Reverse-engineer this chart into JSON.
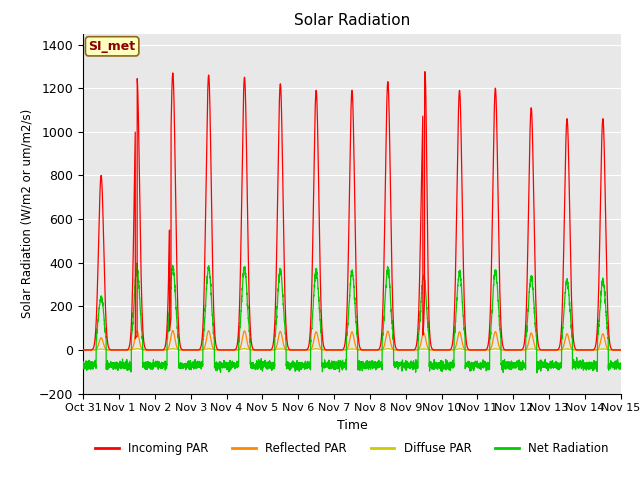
{
  "title": "Solar Radiation",
  "ylabel": "Solar Radiation (W/m2 or um/m2/s)",
  "xlabel": "Time",
  "ylim": [
    -200,
    1450
  ],
  "yticks": [
    -200,
    0,
    200,
    400,
    600,
    800,
    1000,
    1200,
    1400
  ],
  "xlim_days": [
    0,
    15
  ],
  "x_tick_labels": [
    "Oct 31",
    "Nov 1",
    "Nov 2",
    "Nov 3",
    "Nov 4",
    "Nov 5",
    "Nov 6",
    "Nov 7",
    "Nov 8",
    "Nov 9",
    "Nov 10",
    "Nov 11",
    "Nov 12",
    "Nov 13",
    "Nov 14",
    "Nov 15"
  ],
  "x_tick_positions": [
    0,
    1,
    2,
    3,
    4,
    5,
    6,
    7,
    8,
    9,
    10,
    11,
    12,
    13,
    14,
    15
  ],
  "annotation_text": "SI_met",
  "annotation_color": "#8B0000",
  "annotation_bg": "#FFFFC0",
  "bg_color": "#E8E8E8",
  "colors": {
    "incoming": "#FF0000",
    "reflected": "#FF8800",
    "diffuse": "#CCCC00",
    "net": "#00CC00"
  },
  "legend_labels": [
    "Incoming PAR",
    "Reflected PAR",
    "Diffuse PAR",
    "Net Radiation"
  ],
  "legend_colors": [
    "#FF0000",
    "#FF8800",
    "#CCCC00",
    "#00CC00"
  ],
  "peaks_incoming": [
    800,
    1250,
    1270,
    1260,
    1250,
    1220,
    1190,
    1190,
    1230,
    1130,
    1190,
    1200,
    1110,
    1060,
    1060
  ],
  "night_net": -70,
  "daytime_halfwidth": 0.18,
  "pts_per_day": 288
}
